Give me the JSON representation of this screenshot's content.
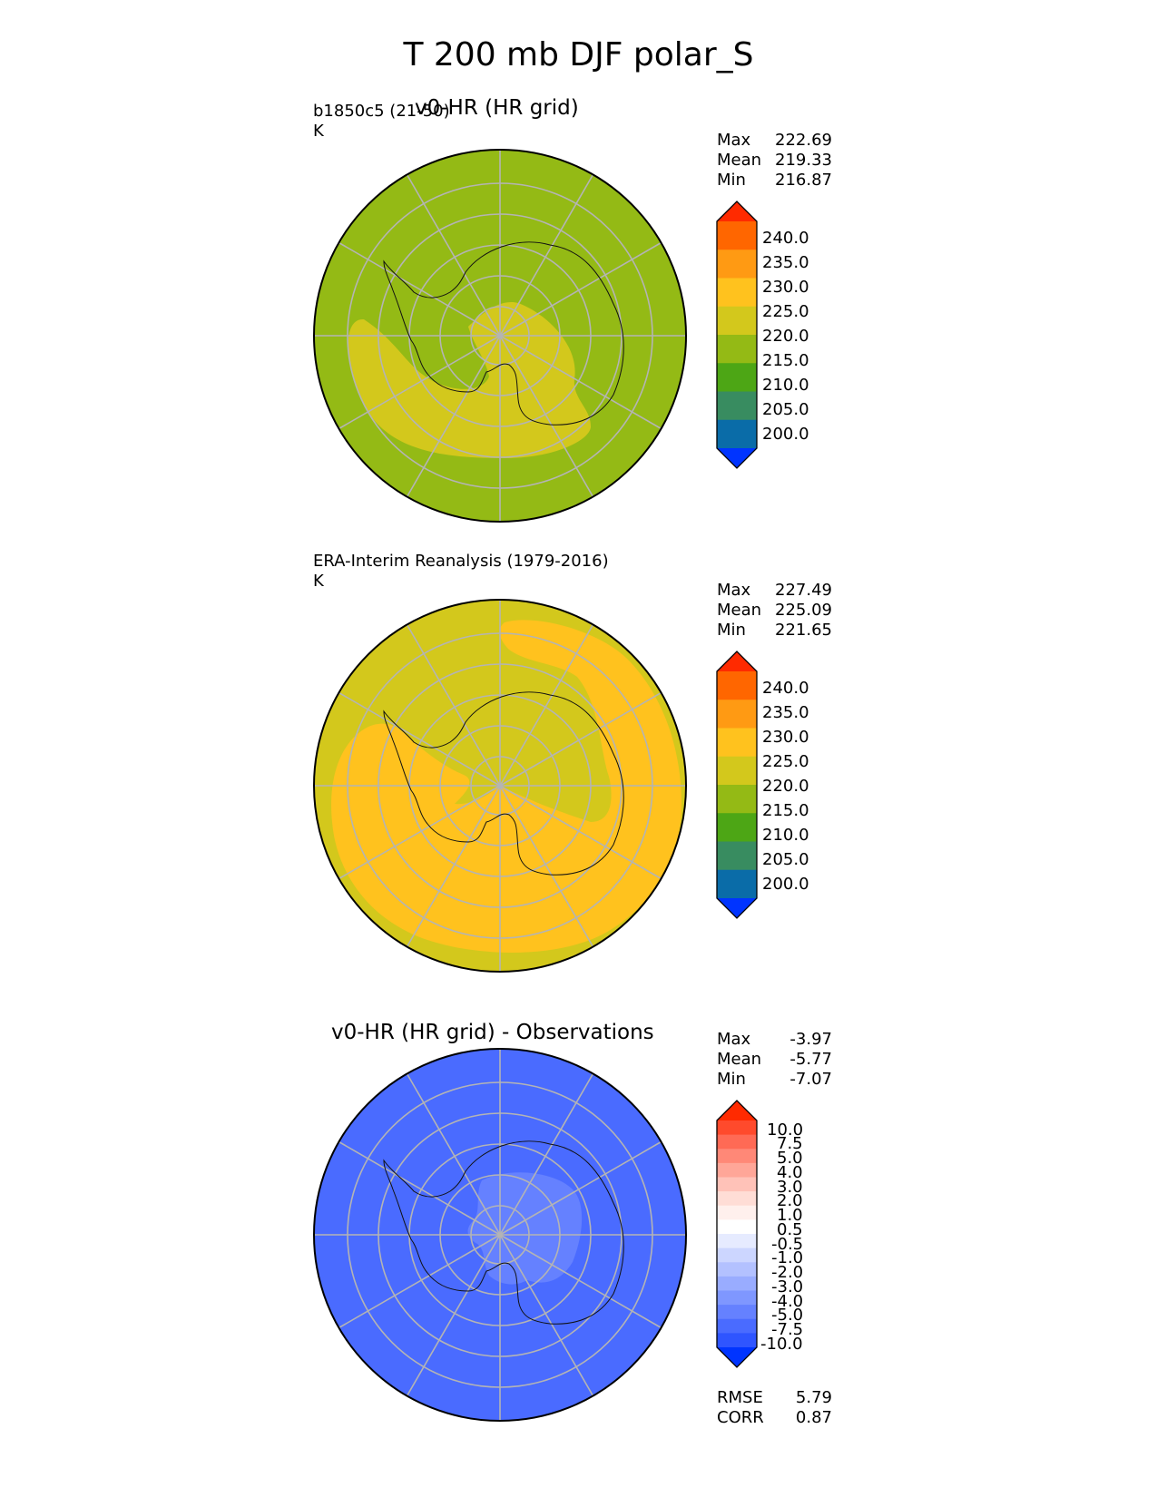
{
  "figure": {
    "title": "T 200 mb DJF polar_S",
    "bottom_stats": {
      "rmse_label": "RMSE",
      "rmse": "5.79",
      "corr_label": "CORR",
      "corr": "0.87"
    }
  },
  "chart_data": [
    {
      "type": "heatmap",
      "projection": "south-polar-stereographic",
      "title": "v0-HR (HR grid)",
      "left_label": "b1850c5 (21-50)",
      "units": "K",
      "stats": {
        "max_label": "Max",
        "max": "222.69",
        "mean_label": "Mean",
        "mean": "219.33",
        "min_label": "Min",
        "min": "216.87"
      },
      "colorbar": {
        "levels": [
          "240.0",
          "235.0",
          "230.0",
          "225.0",
          "220.0",
          "215.0",
          "210.0",
          "205.0",
          "200.0"
        ],
        "colors": [
          "#ff2a00",
          "#ff6600",
          "#ff9a13",
          "#ffc21e",
          "#d3c81c",
          "#94ba15",
          "#4da615",
          "#388c60",
          "#0a6ca8",
          "#0034ff"
        ]
      },
      "field": {
        "background": "#94ba15",
        "regions": [
          {
            "range": "220-225",
            "color": "#d3c81c"
          }
        ]
      }
    },
    {
      "type": "heatmap",
      "projection": "south-polar-stereographic",
      "title": "",
      "left_label": "ERA-Interim Reanalysis (1979-2016)",
      "units": "K",
      "stats": {
        "max_label": "Max",
        "max": "227.49",
        "mean_label": "Mean",
        "mean": "225.09",
        "min_label": "Min",
        "min": "221.65"
      },
      "colorbar": {
        "levels": [
          "240.0",
          "235.0",
          "230.0",
          "225.0",
          "220.0",
          "215.0",
          "210.0",
          "205.0",
          "200.0"
        ],
        "colors": [
          "#ff2a00",
          "#ff6600",
          "#ff9a13",
          "#ffc21e",
          "#d3c81c",
          "#94ba15",
          "#4da615",
          "#388c60",
          "#0a6ca8",
          "#0034ff"
        ]
      },
      "field": {
        "background": "#d3c81c",
        "regions": [
          {
            "range": "225-230",
            "color": "#ffc21e"
          }
        ]
      }
    },
    {
      "type": "heatmap",
      "projection": "south-polar-stereographic",
      "title": "v0-HR (HR grid) - Observations",
      "left_label": "",
      "units": "",
      "stats": {
        "max_label": "Max",
        "max": "-3.97",
        "mean_label": "Mean",
        "mean": "-5.77",
        "min_label": "Min",
        "min": "-7.07"
      },
      "colorbar": {
        "levels": [
          "10.0",
          "7.5",
          "5.0",
          "4.0",
          "3.0",
          "2.0",
          "1.0",
          "0.5",
          "-0.5",
          "-1.0",
          "-2.0",
          "-3.0",
          "-4.0",
          "-5.0",
          "-7.5",
          "-10.0"
        ],
        "colors": [
          "#ff2a00",
          "#ff4a2c",
          "#ff6a55",
          "#ff8877",
          "#ffa698",
          "#ffc2b8",
          "#ffddd6",
          "#fff0ed",
          "#ffffff",
          "#e6ebff",
          "#ccd6ff",
          "#b3c1ff",
          "#99acff",
          "#7f97ff",
          "#6581ff",
          "#4a6bff",
          "#2f55ff",
          "#0034ff"
        ]
      },
      "field": {
        "background": "#4a6bff",
        "regions": [
          {
            "range": "-5.0 to -4.0",
            "color": "#6581ff"
          }
        ]
      }
    }
  ]
}
